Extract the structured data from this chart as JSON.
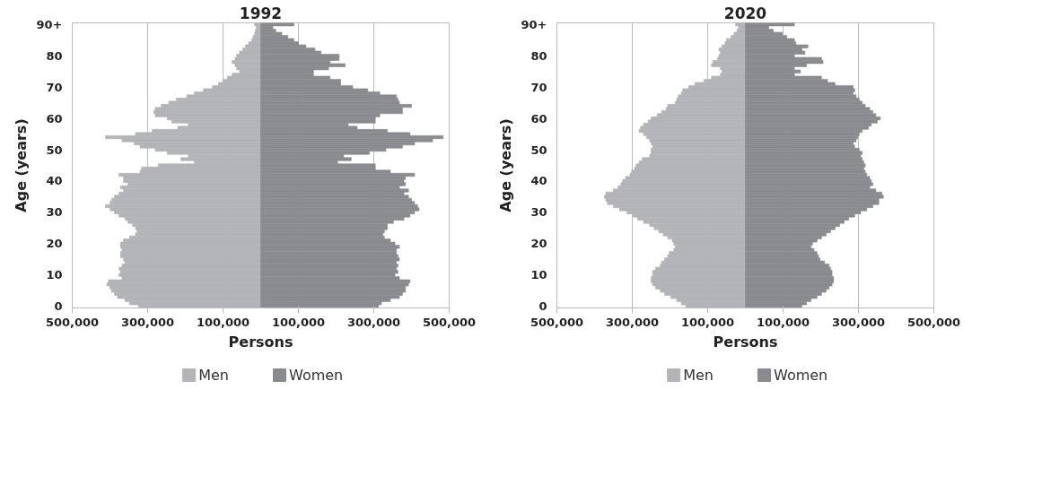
{
  "chart_data": [
    {
      "type": "bar",
      "orientation": "horizontal",
      "title": "1992",
      "xlabel": "Persons",
      "ylabel": "Age (years)",
      "categories": [
        "90+",
        null,
        null,
        null,
        null,
        null,
        null,
        null,
        null,
        null,
        "80",
        null,
        null,
        null,
        null,
        null,
        null,
        null,
        null,
        null,
        "70",
        null,
        null,
        null,
        null,
        null,
        null,
        null,
        null,
        null,
        "60",
        null,
        null,
        null,
        null,
        null,
        null,
        null,
        null,
        null,
        "50",
        null,
        null,
        null,
        null,
        null,
        null,
        null,
        null,
        null,
        "40",
        null,
        null,
        null,
        null,
        null,
        null,
        null,
        null,
        null,
        "30",
        null,
        null,
        null,
        null,
        null,
        null,
        null,
        null,
        null,
        "20",
        null,
        null,
        null,
        null,
        null,
        null,
        null,
        null,
        null,
        "10",
        null,
        null,
        null,
        null,
        null,
        null,
        null,
        null,
        null,
        "0"
      ],
      "series": [
        {
          "name": "Men",
          "color": "#b3b4b7",
          "values": [
            -16000,
            -12000,
            -14000,
            -16000,
            -20000,
            -24000,
            -32000,
            -40000,
            -48000,
            -56000,
            -64000,
            -68000,
            -76000,
            -68000,
            -64000,
            -56000,
            -76000,
            -88000,
            -100000,
            -112000,
            -128000,
            -152000,
            -176000,
            -196000,
            -224000,
            -244000,
            -264000,
            -280000,
            -284000,
            -280000,
            -248000,
            -236000,
            -192000,
            -220000,
            -288000,
            -332000,
            -412000,
            -368000,
            -336000,
            -320000,
            -280000,
            -248000,
            -192000,
            -212000,
            -176000,
            -272000,
            -316000,
            -320000,
            -376000,
            -364000,
            -364000,
            -352000,
            -372000,
            -364000,
            -376000,
            -388000,
            -396000,
            -400000,
            -412000,
            -400000,
            -388000,
            -376000,
            -360000,
            -352000,
            -340000,
            -332000,
            -328000,
            -332000,
            -348000,
            -364000,
            -372000,
            -372000,
            -368000,
            -372000,
            -372000,
            -364000,
            -360000,
            -368000,
            -376000,
            -372000,
            -376000,
            -368000,
            -404000,
            -408000,
            -400000,
            -396000,
            -388000,
            -380000,
            -360000,
            -348000,
            -324000
          ]
        },
        {
          "name": "Women",
          "color": "#8a8b8e",
          "values": [
            88000,
            32000,
            40000,
            56000,
            72000,
            88000,
            100000,
            120000,
            144000,
            160000,
            208000,
            208000,
            184000,
            224000,
            180000,
            140000,
            140000,
            184000,
            212000,
            212000,
            244000,
            284000,
            316000,
            360000,
            364000,
            368000,
            400000,
            376000,
            376000,
            316000,
            304000,
            304000,
            232000,
            256000,
            336000,
            396000,
            484000,
            456000,
            408000,
            376000,
            332000,
            288000,
            220000,
            240000,
            204000,
            304000,
            304000,
            344000,
            408000,
            384000,
            380000,
            384000,
            368000,
            392000,
            380000,
            392000,
            400000,
            408000,
            416000,
            420000,
            408000,
            396000,
            380000,
            352000,
            336000,
            336000,
            328000,
            324000,
            328000,
            344000,
            356000,
            368000,
            360000,
            360000,
            364000,
            368000,
            360000,
            364000,
            360000,
            364000,
            356000,
            368000,
            396000,
            392000,
            384000,
            384000,
            376000,
            368000,
            344000,
            320000,
            312000
          ]
        }
      ],
      "xlim": [
        -500000,
        500000
      ],
      "xticks": [
        {
          "value": -500000,
          "label": "500,000"
        },
        {
          "value": -300000,
          "label": "300,000"
        },
        {
          "value": -100000,
          "label": "100,000"
        },
        {
          "value": 100000,
          "label": "100,000"
        },
        {
          "value": 300000,
          "label": "300,000"
        },
        {
          "value": 500000,
          "label": "500,000"
        }
      ],
      "grid": "x",
      "legend": "bottom",
      "stacked": true
    },
    {
      "type": "bar",
      "orientation": "horizontal",
      "title": "2020",
      "xlabel": "Persons",
      "ylabel": "Age (years)",
      "categories": [
        "90+",
        null,
        null,
        null,
        null,
        null,
        null,
        null,
        null,
        null,
        "80",
        null,
        null,
        null,
        null,
        null,
        null,
        null,
        null,
        null,
        "70",
        null,
        null,
        null,
        null,
        null,
        null,
        null,
        null,
        null,
        "60",
        null,
        null,
        null,
        null,
        null,
        null,
        null,
        null,
        null,
        "50",
        null,
        null,
        null,
        null,
        null,
        null,
        null,
        null,
        null,
        "40",
        null,
        null,
        null,
        null,
        null,
        null,
        null,
        null,
        null,
        "30",
        null,
        null,
        null,
        null,
        null,
        null,
        null,
        null,
        null,
        "20",
        null,
        null,
        null,
        null,
        null,
        null,
        null,
        null,
        null,
        "10",
        null,
        null,
        null,
        null,
        null,
        null,
        null,
        null,
        null,
        "0"
      ],
      "series": [
        {
          "name": "Men",
          "color": "#b3b4b7",
          "values": [
            -26000,
            -18000,
            -22000,
            -30000,
            -38000,
            -50000,
            -54000,
            -62000,
            -70000,
            -66000,
            -70000,
            -74000,
            -86000,
            -90000,
            -66000,
            -62000,
            -66000,
            -90000,
            -110000,
            -134000,
            -150000,
            -166000,
            -170000,
            -178000,
            -182000,
            -186000,
            -206000,
            -210000,
            -222000,
            -234000,
            -250000,
            -258000,
            -270000,
            -278000,
            -282000,
            -270000,
            -262000,
            -254000,
            -250000,
            -246000,
            -250000,
            -250000,
            -254000,
            -274000,
            -282000,
            -290000,
            -294000,
            -302000,
            -306000,
            -318000,
            -326000,
            -330000,
            -338000,
            -350000,
            -370000,
            -374000,
            -370000,
            -366000,
            -350000,
            -334000,
            -314000,
            -298000,
            -286000,
            -270000,
            -254000,
            -242000,
            -230000,
            -218000,
            -206000,
            -194000,
            -190000,
            -186000,
            -190000,
            -202000,
            -206000,
            -214000,
            -222000,
            -226000,
            -238000,
            -246000,
            -246000,
            -250000,
            -250000,
            -246000,
            -238000,
            -226000,
            -214000,
            -198000,
            -182000,
            -170000,
            -158000
          ]
        },
        {
          "name": "Women",
          "color": "#8a8b8e",
          "values": [
            130000,
            62000,
            74000,
            98000,
            110000,
            130000,
            134000,
            166000,
            150000,
            158000,
            130000,
            202000,
            206000,
            162000,
            130000,
            146000,
            130000,
            202000,
            218000,
            238000,
            286000,
            290000,
            286000,
            294000,
            302000,
            310000,
            318000,
            330000,
            338000,
            346000,
            358000,
            350000,
            334000,
            326000,
            310000,
            302000,
            298000,
            294000,
            286000,
            290000,
            302000,
            310000,
            306000,
            310000,
            314000,
            318000,
            314000,
            318000,
            322000,
            330000,
            334000,
            338000,
            330000,
            346000,
            362000,
            366000,
            354000,
            354000,
            338000,
            322000,
            306000,
            290000,
            274000,
            262000,
            250000,
            238000,
            226000,
            214000,
            202000,
            190000,
            178000,
            174000,
            182000,
            190000,
            194000,
            198000,
            210000,
            222000,
            226000,
            230000,
            230000,
            234000,
            234000,
            230000,
            222000,
            214000,
            202000,
            190000,
            174000,
            162000,
            150000
          ]
        }
      ],
      "xlim": [
        -500000,
        500000
      ],
      "xticks": [
        {
          "value": -500000,
          "label": "500,000"
        },
        {
          "value": -300000,
          "label": "300,000"
        },
        {
          "value": -100000,
          "label": "100,000"
        },
        {
          "value": 100000,
          "label": "100,000"
        },
        {
          "value": 300000,
          "label": "300,000"
        },
        {
          "value": 500000,
          "label": "500,000"
        }
      ],
      "grid": "x",
      "legend": "bottom",
      "stacked": true
    }
  ]
}
